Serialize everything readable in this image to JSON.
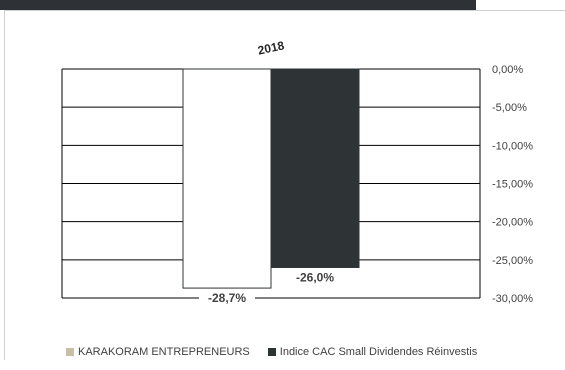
{
  "chart_data": {
    "type": "bar",
    "categories": [
      "2018"
    ],
    "series": [
      {
        "name": "KARAKORAM ENTREPRENEURS",
        "values": [
          -28.7
        ],
        "label": "-28,7%",
        "color": "#ffffff",
        "legend_color": "#c9bfa6"
      },
      {
        "name": "Indice CAC Small Dividendes Réinvestis",
        "values": [
          -26.0
        ],
        "label": "-26,0%",
        "color": "#2e3436",
        "legend_color": "#2e3436"
      }
    ],
    "y_ticks": [
      0,
      -5,
      -10,
      -15,
      -20,
      -25,
      -30
    ],
    "y_tick_labels": [
      "0,00%",
      "-5,00%",
      "-10,00%",
      "-15,00%",
      "-20,00%",
      "-25,00%",
      "-30,00%"
    ],
    "ylim": [
      -30,
      0
    ],
    "y_axis_side": "right",
    "grid": true,
    "legend_position": "bottom-left"
  }
}
